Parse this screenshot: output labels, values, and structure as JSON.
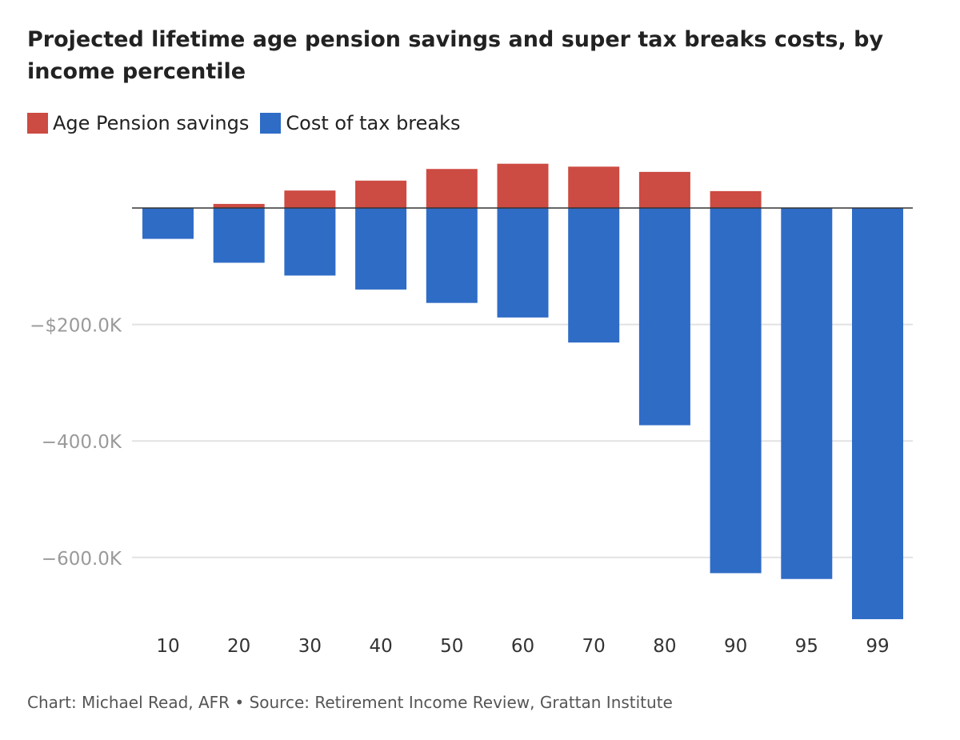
{
  "title": "Projected lifetime age pension savings and super tax breaks costs, by income percentile",
  "legend": [
    {
      "label": "Age Pension savings",
      "color": "#cc4b42"
    },
    {
      "label": "Cost of tax breaks",
      "color": "#2f6cc6"
    }
  ],
  "credit": "Chart: Michael Read, AFR • Source: Retirement Income Review, Grattan Institute",
  "chart_data": {
    "type": "bar",
    "stacked": true,
    "categories": [
      "10",
      "20",
      "30",
      "40",
      "50",
      "60",
      "70",
      "80",
      "90",
      "95",
      "99"
    ],
    "series": [
      {
        "name": "Age Pension savings",
        "color": "#cc4b42",
        "values": [
          0,
          7,
          30,
          47,
          67,
          76,
          71,
          62,
          29,
          0,
          0
        ]
      },
      {
        "name": "Cost of tax breaks",
        "color": "#2f6cc6",
        "values": [
          -53,
          -94,
          -116,
          -140,
          -163,
          -188,
          -231,
          -373,
          -627,
          -637,
          -706
        ]
      }
    ],
    "yticks": [
      {
        "value": -200000,
        "label": "−$200.0K"
      },
      {
        "value": -400000,
        "label": "−400.0K"
      },
      {
        "value": -600000,
        "label": "−600.0K"
      }
    ],
    "ylabel": "",
    "xlabel": "",
    "units": "thousand AUD",
    "ylim": [
      -706,
      76
    ],
    "grid": true
  }
}
